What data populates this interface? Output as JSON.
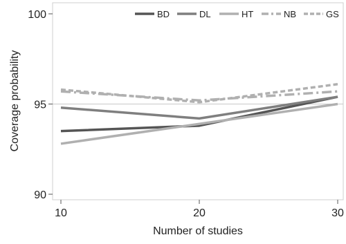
{
  "chart_data": {
    "type": "line",
    "title": "",
    "xlabel": "Number of studies",
    "ylabel": "Coverage probability",
    "x": [
      10,
      20,
      30
    ],
    "xlim": [
      10,
      30
    ],
    "ylim": [
      90,
      100
    ],
    "xticks": [
      10,
      20,
      30
    ],
    "yticks": [
      90,
      95,
      100
    ],
    "reference_line": 95,
    "grid": false,
    "legend_position": "top-right",
    "series": [
      {
        "name": "BD",
        "values": [
          93.5,
          93.8,
          95.4
        ],
        "color": "#555555",
        "dash": "solid"
      },
      {
        "name": "DL",
        "values": [
          94.8,
          94.2,
          95.4
        ],
        "color": "#7f7f7f",
        "dash": "solid"
      },
      {
        "name": "HT",
        "values": [
          92.8,
          93.9,
          95.0
        ],
        "color": "#b0b0b0",
        "dash": "solid"
      },
      {
        "name": "NB",
        "values": [
          95.7,
          95.2,
          95.7
        ],
        "color": "#b0b0b0",
        "dash": "longdash"
      },
      {
        "name": "GS",
        "values": [
          95.8,
          95.1,
          96.1
        ],
        "color": "#b0b0b0",
        "dash": "shortdash"
      }
    ]
  }
}
